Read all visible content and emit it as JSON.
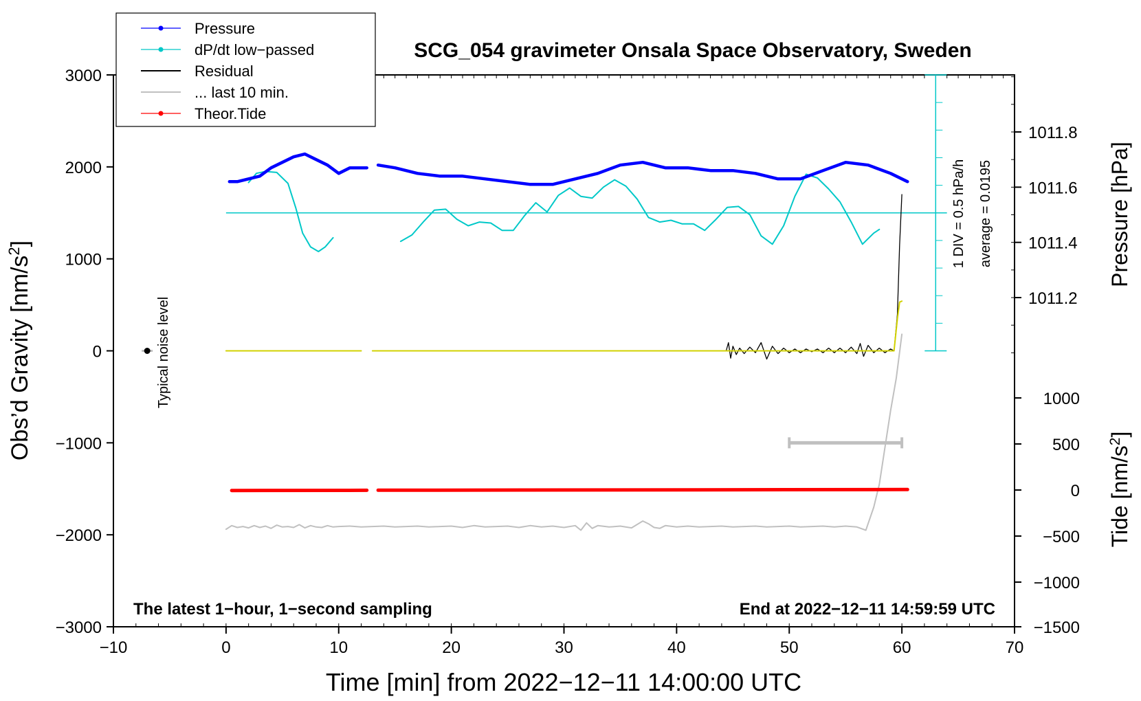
{
  "chart_data": {
    "type": "line",
    "title": "SCG_054 gravimeter Onsala Space Observatory, Sweden",
    "xlabel": "Time [min] from 2022−12−11 14:00:00 UTC",
    "ylabel_left": "Obs’d Gravity [nm/s",
    "ylabel_left_sup": "2",
    "ylabel_left_end": "]",
    "ylabel_right_top": "Pressure [hPa]",
    "ylabel_right_bottom": "Tide [nm/s",
    "ylabel_right_bottom_sup": "2",
    "ylabel_right_bottom_end": "]",
    "xlim": [
      -10,
      70
    ],
    "ylim": [
      -3000,
      3000
    ],
    "x_ticks": [
      -10,
      0,
      10,
      20,
      30,
      40,
      50,
      60,
      70
    ],
    "x_tick_labels": [
      "−10",
      "0",
      "10",
      "20",
      "30",
      "40",
      "50",
      "60",
      "70"
    ],
    "y_ticks": [
      3000,
      2000,
      1000,
      0,
      -1000,
      -2000,
      -3000
    ],
    "y_tick_labels": [
      "3000",
      "2000",
      "1000",
      "0",
      "−1000",
      "−2000",
      "−3000"
    ],
    "pressure_axis": {
      "range_hpa": [
        1011.0,
        1012.0
      ],
      "ticks": [
        1011.2,
        1011.4,
        1011.6,
        1011.8
      ],
      "tick_labels": [
        "1011.2",
        "1011.4",
        "1011.6",
        "1011.8"
      ]
    },
    "tide_axis": {
      "range": [
        -1500,
        1500
      ],
      "ticks": [
        1000,
        500,
        0,
        -500,
        -1000,
        -1500
      ],
      "tick_labels": [
        "1000",
        "500",
        "0",
        "−500",
        "−1000",
        "−1500"
      ]
    },
    "legend": [
      {
        "label": "Pressure",
        "color": "#0000ff",
        "marker": true
      },
      {
        "label": "dP/dt low−passed",
        "color": "#00c8c8",
        "marker": true
      },
      {
        "label": "Residual",
        "color": "#000000",
        "marker": false
      },
      {
        "label": "... last 10 min.",
        "color": "#c0c0c0",
        "marker": false
      },
      {
        "label": "Theor.Tide",
        "color": "#ff0000",
        "marker": true
      }
    ],
    "annotations": {
      "noise_label": "Typical noise level",
      "div_label": "1 DIV = 0.5 hPa/h",
      "average_label": "average = 0.0195",
      "bottom_left": "The latest 1−hour, 1−second sampling",
      "bottom_right": "End at 2022−12−11 14:59:59 UTC"
    },
    "colors": {
      "pressure": "#0000ff",
      "dpdt": "#00c8c8",
      "residual": "#000000",
      "residual_fit": "#d2d200",
      "last10": "#c0c0c0",
      "tide": "#ff0000"
    },
    "series": [
      {
        "name": "Pressure",
        "axis": "pressure",
        "segments": [
          {
            "x": [
              0.3,
              1,
              2,
              3,
              4,
              5,
              6,
              7,
              8,
              9,
              10,
              11,
              12.5
            ],
            "y": [
              1011.62,
              1011.62,
              1011.63,
              1011.64,
              1011.67,
              1011.69,
              1011.71,
              1011.72,
              1011.7,
              1011.68,
              1011.65,
              1011.67,
              1011.67
            ]
          },
          {
            "x": [
              13.5,
              15,
              17,
              19,
              21,
              23,
              25,
              27,
              29,
              31,
              33,
              35,
              37,
              39,
              41,
              43,
              45,
              47,
              49,
              51,
              53,
              55,
              57,
              59,
              60.5
            ],
            "y": [
              1011.68,
              1011.67,
              1011.65,
              1011.64,
              1011.64,
              1011.63,
              1011.62,
              1011.61,
              1011.61,
              1011.63,
              1011.65,
              1011.68,
              1011.69,
              1011.67,
              1011.67,
              1011.66,
              1011.66,
              1011.65,
              1011.63,
              1011.63,
              1011.66,
              1011.69,
              1011.68,
              1011.65,
              1011.62
            ]
          }
        ]
      },
      {
        "name": "dP/dt low−passed",
        "axis": "gravity_display",
        "baseline": 1500,
        "segments": [
          {
            "x": [
              2,
              2.7,
              3.5,
              4.5,
              5.5,
              6.2,
              6.8,
              7.5,
              8.2,
              8.8,
              9.5
            ],
            "y": [
              1830,
              1930,
              1950,
              1940,
              1820,
              1550,
              1280,
              1130,
              1080,
              1130,
              1230
            ]
          },
          {
            "x": [
              15.5,
              16.5,
              17.5,
              18.5,
              19.5,
              20.5,
              21.5,
              22.5,
              23.5,
              24.5,
              25.5,
              26.5,
              27.5,
              28.5,
              29.5,
              30.5,
              31.5,
              32.5,
              33.5,
              34.5,
              35.5,
              36.5,
              37.5,
              38.5,
              39.5,
              40.5,
              41.5,
              42.5,
              43.5,
              44.5,
              45.5,
              46.5,
              47.5,
              48.5,
              49.5,
              50.5,
              51.5,
              52.5,
              53.5,
              54.5,
              55.5,
              56.5,
              57.5,
              58
            ],
            "y": [
              1190,
              1260,
              1400,
              1530,
              1540,
              1430,
              1360,
              1400,
              1390,
              1310,
              1310,
              1470,
              1610,
              1510,
              1690,
              1770,
              1680,
              1660,
              1780,
              1860,
              1790,
              1650,
              1450,
              1400,
              1420,
              1380,
              1380,
              1310,
              1430,
              1560,
              1570,
              1480,
              1250,
              1160,
              1360,
              1680,
              1920,
              1880,
              1760,
              1620,
              1400,
              1160,
              1280,
              1320
            ]
          }
        ]
      },
      {
        "name": "Residual",
        "axis": "gravity",
        "segments": [
          {
            "x": [
              0,
              12
            ],
            "y": [
              0,
              0
            ]
          },
          {
            "x": [
              13,
              44.4
            ],
            "y": [
              0,
              0
            ]
          },
          {
            "x": [
              44.4,
              44.6,
              44.8,
              45,
              45.3,
              45.6,
              46,
              46.5,
              47,
              47.5,
              48,
              48.5,
              49,
              49.5,
              50,
              50.5,
              51,
              51.5,
              52,
              52.5,
              53,
              53.5,
              54,
              54.5,
              55,
              55.5,
              56,
              56.3,
              56.6,
              57,
              57.5,
              58,
              58.5,
              59,
              59.3
            ],
            "y": [
              0,
              90,
              -80,
              50,
              -40,
              30,
              -30,
              40,
              -20,
              90,
              -90,
              50,
              -30,
              30,
              -20,
              20,
              -20,
              20,
              -10,
              20,
              -20,
              30,
              -20,
              30,
              -20,
              40,
              -30,
              80,
              -60,
              60,
              -20,
              30,
              -20,
              20,
              0
            ]
          },
          {
            "x": [
              59.3,
              59.6,
              59.8,
              60.0
            ],
            "y": [
              0,
              400,
              1150,
              1700
            ]
          }
        ]
      },
      {
        "name": "Residual fit",
        "axis": "gravity",
        "segments": [
          {
            "x": [
              0,
              12
            ],
            "y": [
              0,
              0
            ]
          },
          {
            "x": [
              13,
              59.3,
              59.6,
              59.8,
              60.0
            ],
            "y": [
              0,
              0,
              350,
              530,
              540
            ]
          }
        ]
      },
      {
        "name": "... last 10 min.",
        "axis": "gravity",
        "segments": [
          {
            "x": [
              0,
              0.5,
              1,
              1.5,
              2,
              2.5,
              3,
              3.5,
              4,
              4.5,
              5,
              5.5,
              6,
              6.5,
              7,
              7.5,
              8,
              8.5,
              9,
              9.5,
              10,
              11,
              12,
              13,
              14,
              15,
              16,
              17,
              18,
              19,
              20,
              21,
              22,
              23,
              24,
              25,
              26,
              27,
              28,
              29,
              30,
              31,
              31.5,
              32,
              32.5,
              33,
              34,
              35,
              36,
              37,
              37.5,
              38,
              38.5,
              39,
              40,
              41,
              42,
              43,
              44,
              45,
              46,
              47,
              48,
              49,
              50,
              51,
              52,
              53,
              54,
              55,
              56,
              56.8,
              57.5,
              58,
              58.5,
              59,
              59.5,
              60
            ],
            "y": [
              -1940,
              -1900,
              -1920,
              -1910,
              -1925,
              -1900,
              -1920,
              -1905,
              -1930,
              -1895,
              -1915,
              -1910,
              -1920,
              -1890,
              -1925,
              -1900,
              -1915,
              -1920,
              -1900,
              -1915,
              -1910,
              -1905,
              -1915,
              -1910,
              -1905,
              -1915,
              -1910,
              -1905,
              -1915,
              -1910,
              -1905,
              -1920,
              -1900,
              -1915,
              -1910,
              -1905,
              -1920,
              -1900,
              -1915,
              -1905,
              -1920,
              -1900,
              -1950,
              -1870,
              -1930,
              -1900,
              -1915,
              -1905,
              -1925,
              -1850,
              -1880,
              -1920,
              -1930,
              -1900,
              -1915,
              -1905,
              -1915,
              -1910,
              -1905,
              -1915,
              -1910,
              -1905,
              -1915,
              -1910,
              -1905,
              -1915,
              -1910,
              -1905,
              -1915,
              -1905,
              -1915,
              -1950,
              -1700,
              -1450,
              -1050,
              -650,
              -300,
              180
            ]
          }
        ]
      },
      {
        "name": "Theor.Tide",
        "axis": "tide",
        "segments": [
          {
            "x": [
              0.5,
              12.5
            ],
            "y": [
              -5,
              -3
            ]
          },
          {
            "x": [
              13.5,
              60.5
            ],
            "y": [
              -2,
              5
            ]
          }
        ]
      }
    ],
    "noise_point": {
      "x": -7,
      "y": 0
    },
    "last10_bar": {
      "x_start": 50,
      "x_end": 60,
      "y": -1000
    }
  }
}
